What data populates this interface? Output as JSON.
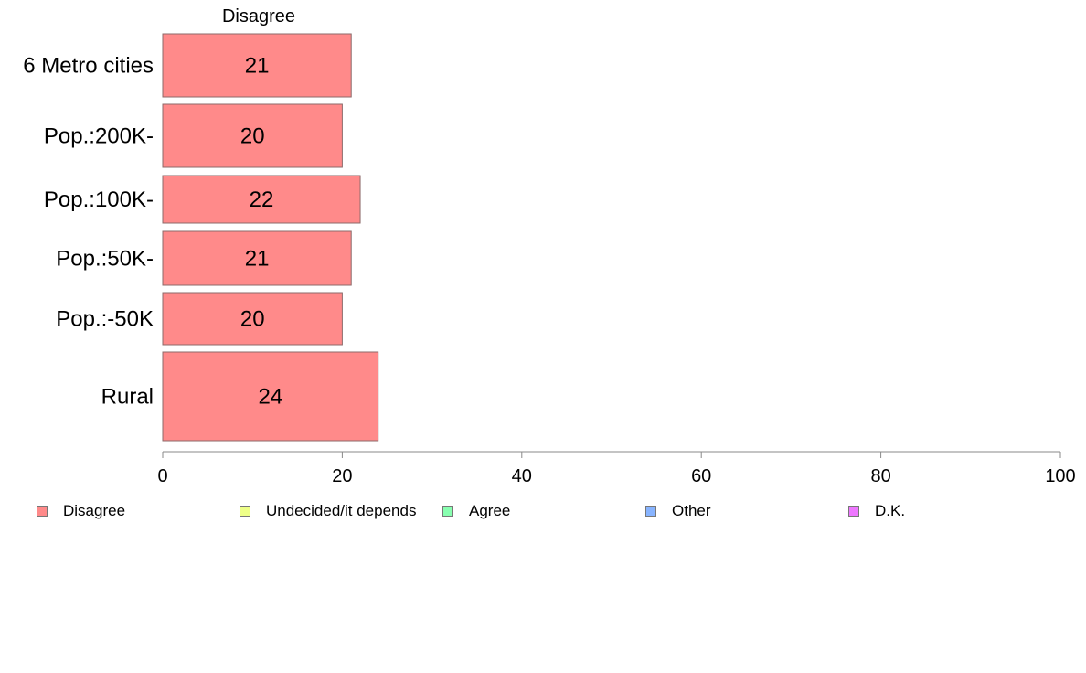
{
  "chart_data": {
    "type": "bar",
    "orientation": "horizontal",
    "categories": [
      "6 Metro cities",
      "Pop.:200K-",
      "Pop.:100K-",
      "Pop.:50K-",
      "Pop.:-50K",
      "Rural"
    ],
    "series": [
      {
        "name": "Disagree",
        "values": [
          21,
          20,
          22,
          21,
          20,
          24
        ],
        "color": "#FF8A8A"
      }
    ],
    "visible_series_label": "Disagree",
    "xlim": [
      0,
      100
    ],
    "xticks": [
      0,
      20,
      40,
      60,
      80,
      100
    ],
    "grid": false,
    "legend_position": "bottom",
    "legend": [
      {
        "label": "Disagree",
        "color": "#FF8A8A"
      },
      {
        "label": "Undecided/it depends",
        "color": "#EEFF88"
      },
      {
        "label": "Agree",
        "color": "#88FFB0"
      },
      {
        "label": "Other",
        "color": "#88B4FF"
      },
      {
        "label": "D.K.",
        "color": "#EE77FF"
      }
    ]
  }
}
